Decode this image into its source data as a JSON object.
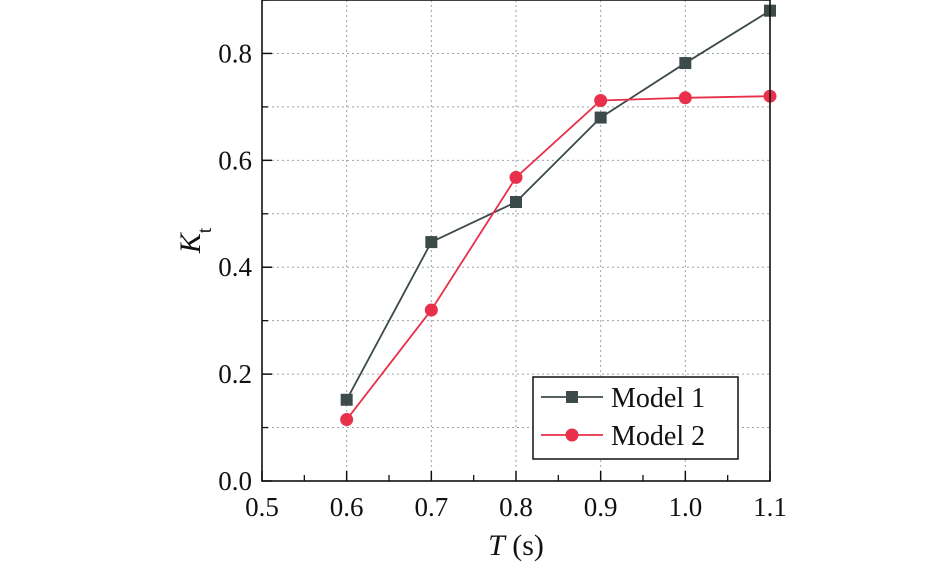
{
  "chart_data": {
    "type": "line",
    "xlabel": {
      "var": "T",
      "unit": " (s)"
    },
    "ylabel": {
      "var": "K",
      "sub": "t"
    },
    "xlim": [
      0.5,
      1.1
    ],
    "ylim": [
      0.0,
      0.9
    ],
    "xticks": [
      "0.5",
      "0.6",
      "0.7",
      "0.8",
      "0.9",
      "1.0",
      "1.1"
    ],
    "yticks": [
      "0.0",
      "0.2",
      "0.4",
      "0.6",
      "0.8"
    ],
    "grid": true,
    "legend_position": "bottom-right",
    "x": [
      0.6,
      0.7,
      0.8,
      0.9,
      1.0,
      1.1
    ],
    "series": [
      {
        "name": "Model 1",
        "values": [
          0.152,
          0.447,
          0.522,
          0.68,
          0.782,
          0.88
        ],
        "color": "#3d4a4a",
        "marker": "square"
      },
      {
        "name": "Model 2",
        "values": [
          0.115,
          0.32,
          0.568,
          0.712,
          0.717,
          0.72
        ],
        "color": "#e8304a",
        "marker": "circle"
      }
    ]
  }
}
